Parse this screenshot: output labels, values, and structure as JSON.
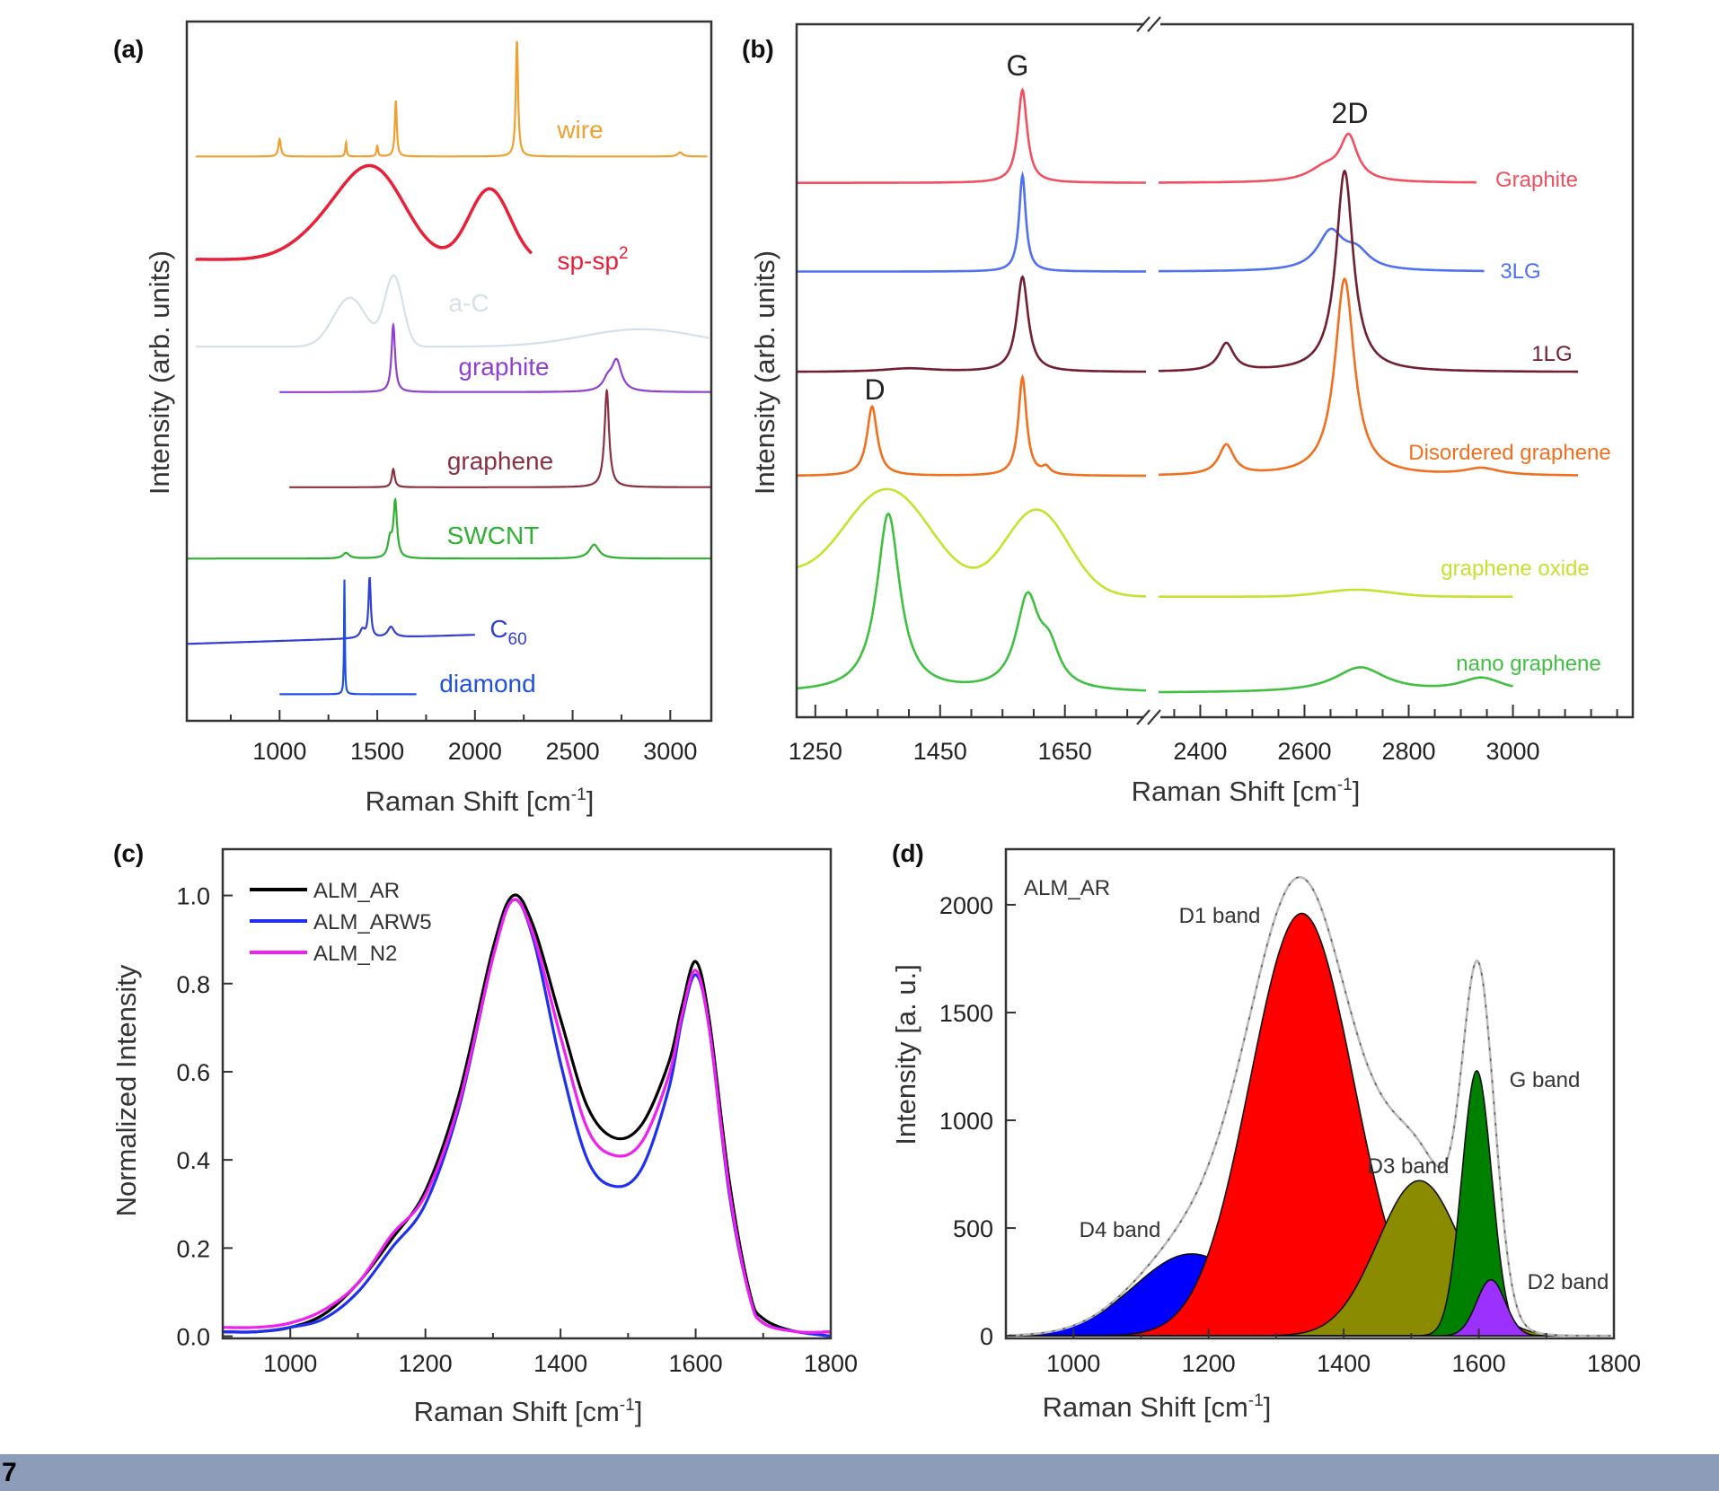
{
  "figure_number": "7",
  "chart_data": [
    {
      "panel": "(a)",
      "type": "line",
      "xlabel_pre": "Raman Shift [cm",
      "xlabel_sup": "-1",
      "xlabel_post": "]",
      "ylabel": "Intensity (arb. units)",
      "xlim": [
        525,
        3210
      ],
      "ylim": [
        0,
        100
      ],
      "xticks": [
        1000,
        1500,
        2000,
        2500,
        3000
      ],
      "grid": false,
      "series": [
        {
          "name": "wire",
          "color": "#f0a030",
          "shape": "lorentzian",
          "x_range": [
            570,
            3190
          ],
          "baseline": [
            80.7,
            80.7
          ],
          "peaks": [
            [
              1000,
              2.5,
              15
            ],
            [
              1340,
              2,
              8
            ],
            [
              1500,
              1.5,
              10
            ],
            [
              1595,
              8,
              12
            ],
            [
              2215,
              16.5,
              14
            ],
            [
              3050,
              0.6,
              30
            ]
          ]
        },
        {
          "name": "sp-sp",
          "name_sup": "2",
          "color": "#e82038",
          "shape": "gaussian",
          "x_range": [
            570,
            2290
          ],
          "baseline": [
            66,
            65.5
          ],
          "peaks": [
            [
              1250,
              4,
              400
            ],
            [
              1490,
              12,
              380
            ],
            [
              2075,
              10.5,
              250
            ]
          ]
        },
        {
          "name": "a-C",
          "color": "#d5e1e8",
          "shape": "gaussian",
          "x_range": [
            570,
            3200
          ],
          "baseline": [
            53.5,
            53.5
          ],
          "peaks": [
            [
              1360,
              7,
              200
            ],
            [
              1585,
              10,
              110
            ],
            [
              2850,
              2.5,
              700
            ]
          ]
        },
        {
          "name": "graphite",
          "color": "#9040d0",
          "shape": "lorentzian",
          "x_range": [
            1000,
            3210
          ],
          "baseline": [
            47,
            47
          ],
          "peaks": [
            [
              1582,
              9.6,
              22
            ],
            [
              2725,
              4.3,
              60
            ],
            [
              2680,
              1.5,
              60
            ]
          ]
        },
        {
          "name": "graphene",
          "color": "#8b3040",
          "shape": "lorentzian",
          "x_range": [
            1050,
            3210
          ],
          "baseline": [
            33.4,
            33.4
          ],
          "peaks": [
            [
              1582,
              2.6,
              18
            ],
            [
              2675,
              13.8,
              28
            ]
          ]
        },
        {
          "name": "SWCNT",
          "color": "#30b030",
          "shape": "lorentzian",
          "x_range": [
            525,
            3210
          ],
          "baseline": [
            23.2,
            23.2
          ],
          "peaks": [
            [
              1592,
              8,
              22
            ],
            [
              1565,
              2.5,
              25
            ],
            [
              1340,
              0.8,
              40
            ],
            [
              2610,
              2,
              60
            ]
          ]
        },
        {
          "name": "C",
          "name_sub": "60",
          "color": "#3040d0",
          "shape": "lorentzian",
          "x_range": [
            525,
            2000
          ],
          "baseline": [
            11.0,
            12.3
          ],
          "peaks": [
            [
              1461,
              8.5,
              14
            ],
            [
              1424,
              1.2,
              30
            ],
            [
              1570,
              1.5,
              40
            ]
          ]
        },
        {
          "name": "diamond",
          "color": "#2050e0",
          "shape": "lorentzian",
          "x_range": [
            1000,
            1700
          ],
          "baseline": [
            3.8,
            3.8
          ],
          "peaks": [
            [
              1332,
              16.4,
              5
            ]
          ]
        }
      ]
    },
    {
      "panel": "(b)",
      "type": "line",
      "xlabel_pre": "Raman Shift [cm",
      "xlabel_sup": "-1",
      "xlabel_post": "]",
      "ylabel": "Intensity (arb. units)",
      "axis_break": true,
      "xlim_left": [
        1220,
        1780
      ],
      "xlim_right": [
        2320,
        3230
      ],
      "ylim": [
        0,
        100
      ],
      "xticks_left": [
        1250,
        1450,
        1650
      ],
      "xticks_right": [
        2400,
        2600,
        2800,
        3000
      ],
      "annotations": [
        {
          "text": "G",
          "x": 1582
        },
        {
          "text": "2D",
          "x": 2677
        },
        {
          "text": "D",
          "x": 1341
        }
      ],
      "series": [
        {
          "name": "Graphite",
          "color": "#f05060",
          "shape": "lorentzian",
          "x_range_right": [
            2320,
            2930
          ],
          "baseline": [
            77.1,
            77.1
          ],
          "peaks": [
            [
              1582,
              13.4,
              18
            ],
            [
              2685,
              6.2,
              40
            ],
            [
              2640,
              2,
              80
            ]
          ]
        },
        {
          "name": "3LG",
          "color": "#5070f0",
          "shape": "lorentzian",
          "x_range_right": [
            2320,
            2945
          ],
          "baseline": [
            64.3,
            64.3
          ],
          "peaks": [
            [
              1582,
              13.9,
              13
            ],
            [
              2650,
              5.5,
              60
            ],
            [
              2700,
              2.5,
              60
            ]
          ]
        },
        {
          "name": "1LG",
          "color": "#702030",
          "shape": "lorentzian",
          "x_range_right": [
            2320,
            3125
          ],
          "baseline": [
            49.8,
            49.8
          ],
          "peaks": [
            [
              1582,
              13.7,
              22
            ],
            [
              2450,
              4,
              35
            ],
            [
              2677,
              29,
              40
            ],
            [
              1400,
              0.5,
              100
            ]
          ]
        },
        {
          "name": "Disordered graphene",
          "color": "#f07020",
          "shape": "lorentzian",
          "x_range_right": [
            2320,
            3125
          ],
          "baseline": [
            34.8,
            34.8
          ],
          "peaks": [
            [
              1341,
              10,
              20
            ],
            [
              1582,
              14.2,
              16
            ],
            [
              1620,
              1,
              15
            ],
            [
              2450,
              4.3,
              35
            ],
            [
              2677,
              28.4,
              45
            ],
            [
              2940,
              1,
              80
            ]
          ]
        },
        {
          "name": "graphene  oxide",
          "color": "#c8e030",
          "shape": "gaussian",
          "x_range_right": [
            2320,
            3000
          ],
          "baseline": [
            17.4,
            17.4
          ],
          "peaks": [
            [
              1150,
              4,
              150
            ],
            [
              1365,
              15.5,
              170
            ],
            [
              1605,
              12.5,
              120
            ],
            [
              2700,
              1,
              150
            ]
          ]
        },
        {
          "name": "nano graphene",
          "color": "#40c040",
          "shape": "lorentzian",
          "x_range_right": [
            2320,
            3000
          ],
          "baseline": [
            3.5,
            3.5
          ],
          "peaks": [
            [
              1367,
              25.7,
              45
            ],
            [
              1590,
              13,
              45
            ],
            [
              1625,
              5,
              40
            ],
            [
              2707,
              3.6,
              120
            ],
            [
              2940,
              2,
              100
            ]
          ]
        }
      ]
    },
    {
      "panel": "(c)",
      "type": "line",
      "xlabel_pre": "Raman Shift [cm",
      "xlabel_sup": "-1",
      "xlabel_post": "]",
      "ylabel": "Normalized Intensity",
      "xlim": [
        900,
        1800
      ],
      "ylim": [
        -0.005,
        1.105
      ],
      "xticks": [
        1000,
        1200,
        1400,
        1600,
        1800
      ],
      "yticks": [
        "0.0",
        "0.2",
        "0.4",
        "0.6",
        "0.8",
        "1.0"
      ],
      "legend": "top-left",
      "x": [
        900,
        950,
        1000,
        1050,
        1100,
        1150,
        1200,
        1250,
        1300,
        1330,
        1360,
        1400,
        1440,
        1480,
        1520,
        1560,
        1580,
        1600,
        1620,
        1650,
        1680,
        1700,
        1750,
        1800
      ],
      "series": [
        {
          "name": "ALM_AR",
          "color": "#000000",
          "values": [
            0.01,
            0.01,
            0.02,
            0.05,
            0.12,
            0.22,
            0.33,
            0.55,
            0.88,
            1.0,
            0.93,
            0.72,
            0.52,
            0.45,
            0.48,
            0.62,
            0.75,
            0.85,
            0.72,
            0.35,
            0.1,
            0.04,
            0.01,
            0.01
          ]
        },
        {
          "name": "ALM_ARW5",
          "color": "#2030f0",
          "values": [
            0.01,
            0.01,
            0.02,
            0.04,
            0.1,
            0.2,
            0.3,
            0.52,
            0.86,
            0.99,
            0.9,
            0.62,
            0.4,
            0.34,
            0.38,
            0.56,
            0.72,
            0.82,
            0.7,
            0.32,
            0.09,
            0.03,
            0.01,
            0.0
          ]
        },
        {
          "name": "ALM_N2",
          "color": "#f020f0",
          "values": [
            0.02,
            0.02,
            0.03,
            0.06,
            0.12,
            0.23,
            0.32,
            0.53,
            0.86,
            0.99,
            0.91,
            0.68,
            0.47,
            0.41,
            0.44,
            0.59,
            0.73,
            0.83,
            0.7,
            0.33,
            0.09,
            0.03,
            0.01,
            0.01
          ]
        }
      ]
    },
    {
      "panel": "(d)",
      "type": "area",
      "sample": "ALM_AR",
      "xlabel_pre": "Raman Shift [cm",
      "xlabel_sup": "-1",
      "xlabel_post": "]",
      "ylabel": "Intensity [a. u.]",
      "xlim": [
        900,
        1800
      ],
      "ylim": [
        -12,
        2258
      ],
      "xticks": [
        1000,
        1200,
        1400,
        1600,
        1800
      ],
      "yticks": [
        0,
        500,
        1000,
        1500,
        2000
      ],
      "fit_shape": "gaussian",
      "bands": [
        {
          "name": "D4 band",
          "color": "#0000ff",
          "center": 1175,
          "height": 380,
          "fwhm": 200
        },
        {
          "name": "D1 band",
          "color": "#ff0000",
          "center": 1338,
          "height": 1960,
          "fwhm": 180
        },
        {
          "name": "D3 band",
          "color": "#8b8b00",
          "center": 1512,
          "height": 720,
          "fwhm": 145
        },
        {
          "name": "G band",
          "color": "#008000",
          "center": 1597,
          "height": 1230,
          "fwhm": 52
        },
        {
          "name": "D2 band",
          "color": "#9b30ff",
          "center": 1618,
          "height": 260,
          "fwhm": 50
        }
      ],
      "sum_color": "#bbbbbb"
    }
  ]
}
